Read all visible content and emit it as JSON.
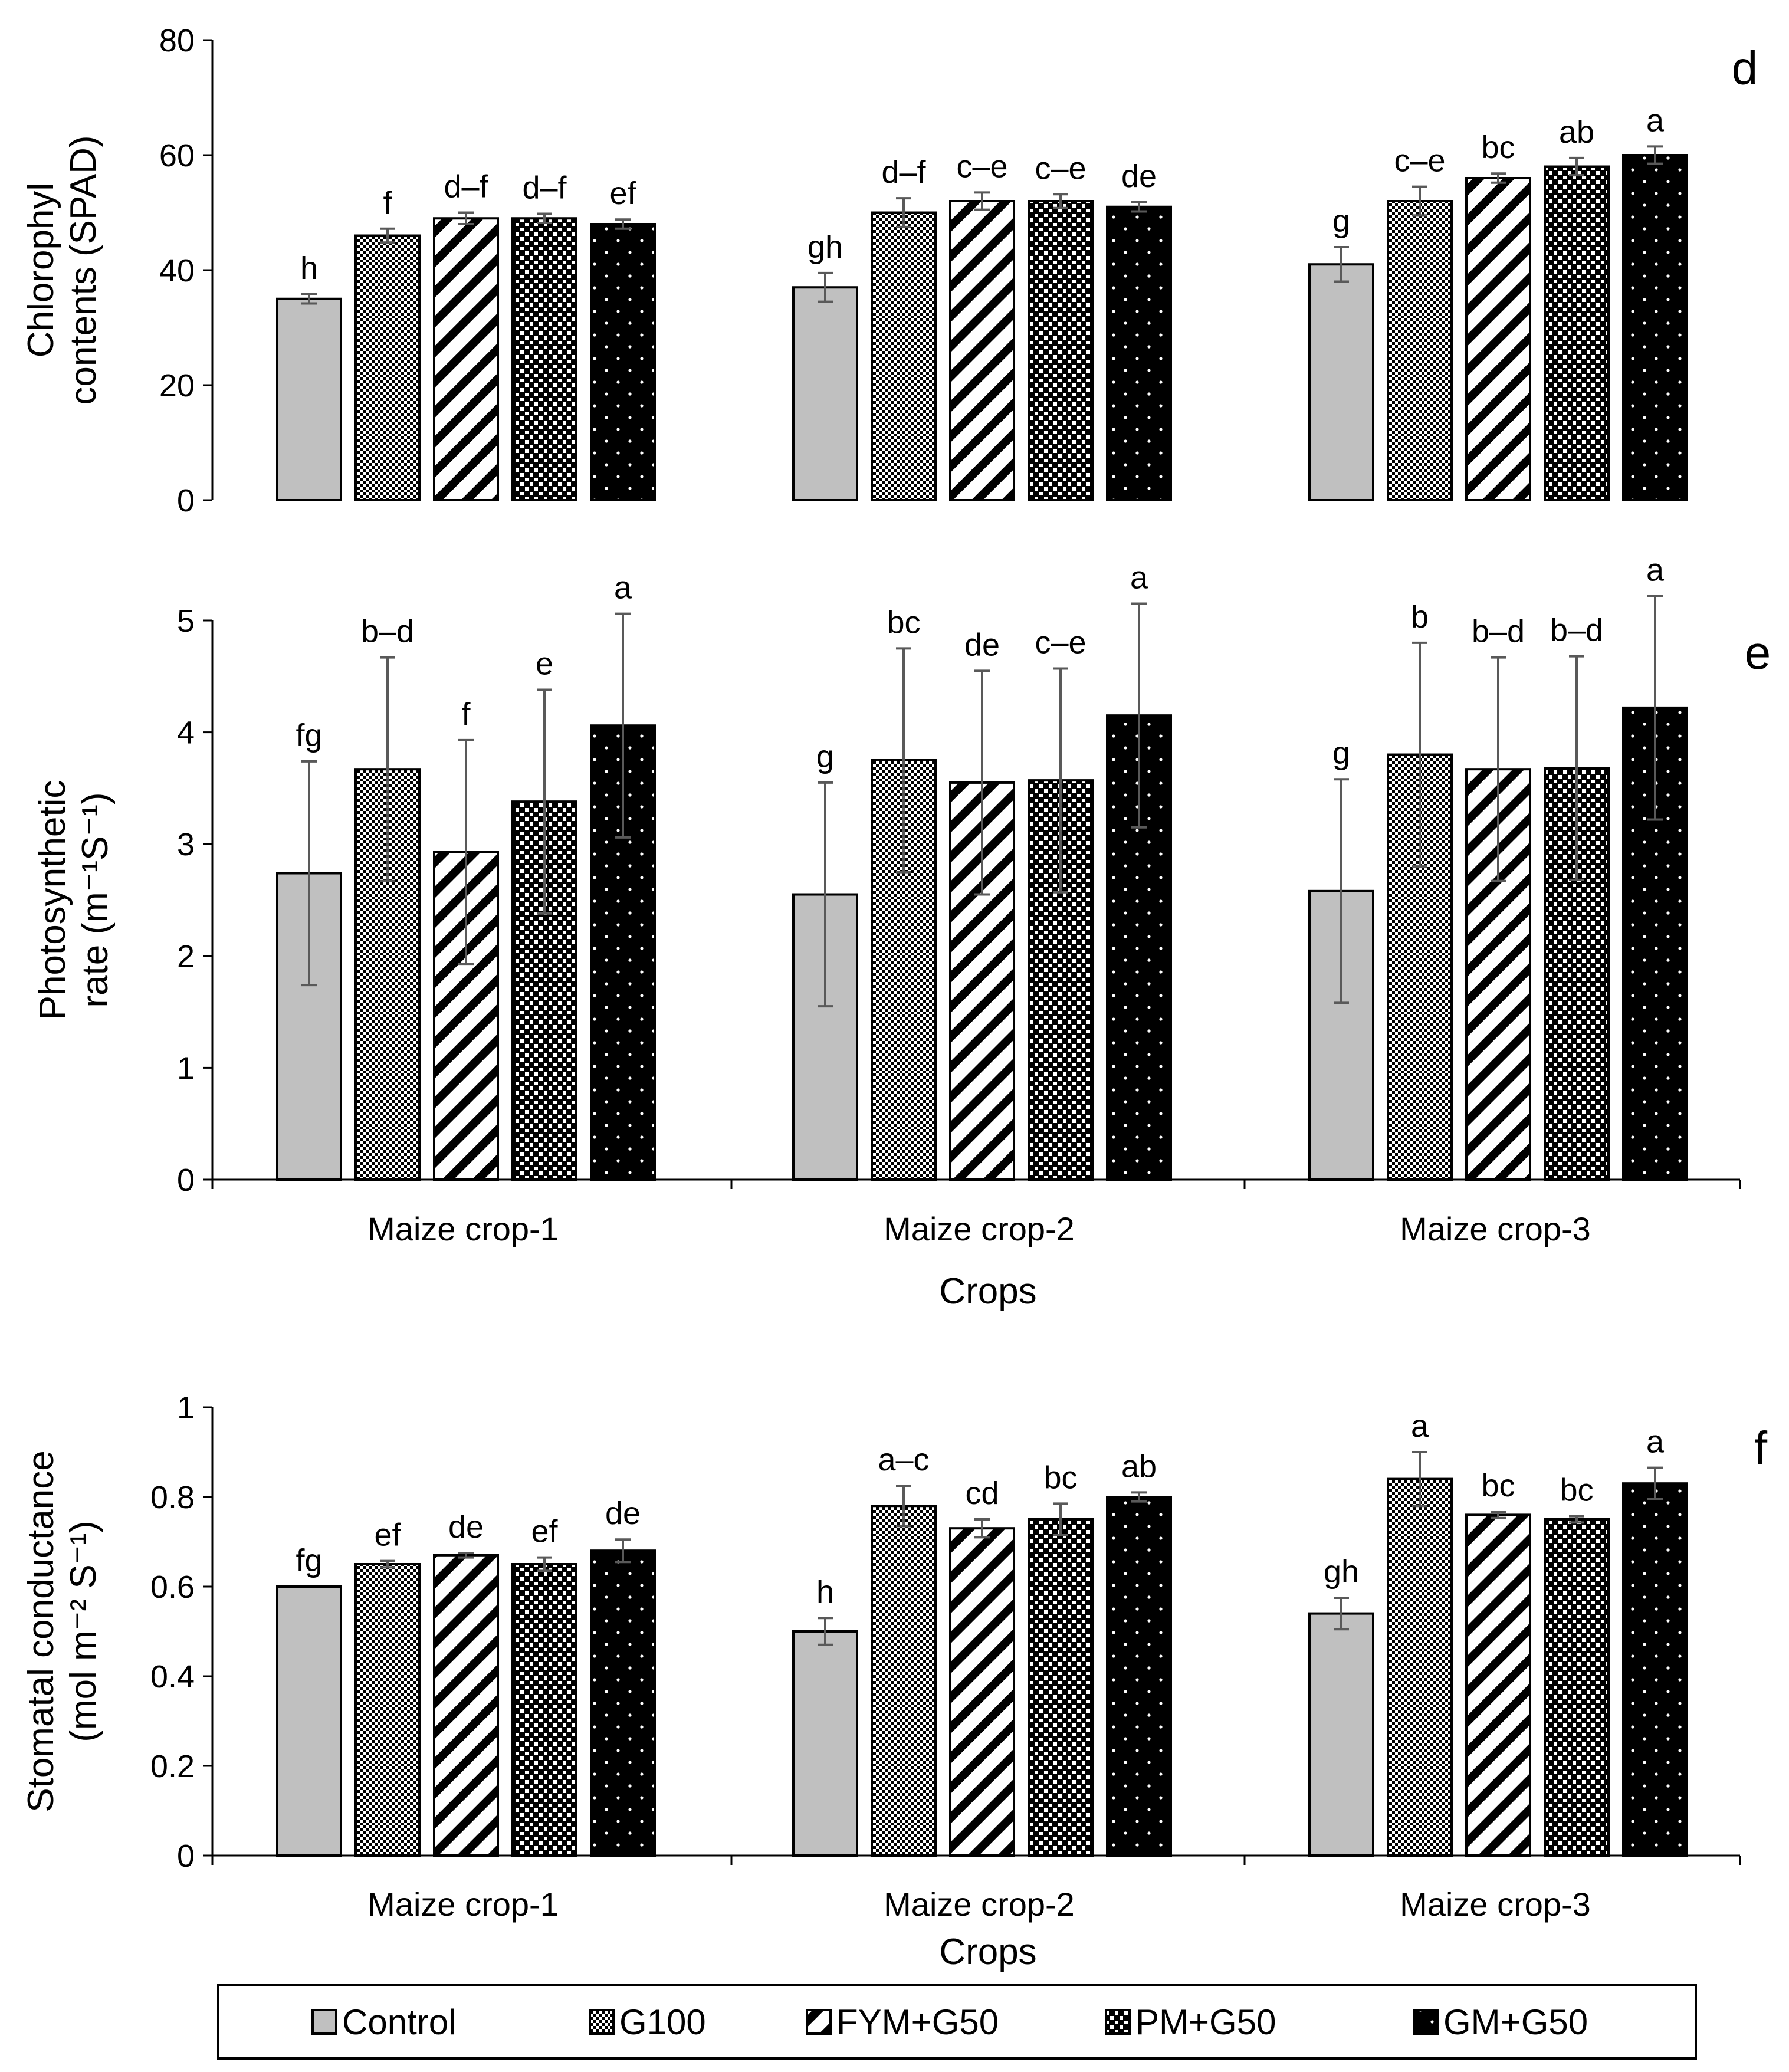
{
  "chart_data": [
    {
      "type": "bar",
      "panel_label": "d",
      "ylabel_lines": [
        "Chlorophyl",
        "contents (SPAD)"
      ],
      "xlabel": "",
      "ylim": [
        0,
        80
      ],
      "yticks": [
        "0",
        "20",
        "40",
        "60",
        "80"
      ],
      "categories": [
        "",
        "",
        ""
      ],
      "series": [
        {
          "name": "Control",
          "values": [
            35,
            37,
            41
          ],
          "errors": [
            0.8,
            2.5,
            3.0
          ],
          "letters": [
            "h",
            "gh",
            "g"
          ]
        },
        {
          "name": "G100",
          "values": [
            46,
            50,
            52
          ],
          "errors": [
            1.2,
            2.5,
            2.5
          ],
          "letters": [
            "f",
            "d–f",
            "c–e"
          ]
        },
        {
          "name": "FYM+G50",
          "values": [
            49,
            52,
            56
          ],
          "errors": [
            1.0,
            1.5,
            0.8
          ],
          "letters": [
            "d–f",
            "c–e",
            "bc"
          ]
        },
        {
          "name": "PM+G50",
          "values": [
            49,
            52,
            58
          ],
          "errors": [
            0.8,
            1.2,
            1.5
          ],
          "letters": [
            "d–f",
            "c–e",
            "ab"
          ]
        },
        {
          "name": "GM+G50",
          "values": [
            48,
            51,
            60
          ],
          "errors": [
            0.8,
            0.8,
            1.5
          ],
          "letters": [
            "ef",
            "de",
            "a"
          ]
        }
      ]
    },
    {
      "type": "bar",
      "panel_label": "e",
      "ylabel_lines": [
        "Photosynthetic",
        "rate (m⁻¹S⁻¹)"
      ],
      "xlabel": "Crops",
      "ylim": [
        0,
        5
      ],
      "yticks": [
        "0",
        "1",
        "2",
        "3",
        "4",
        "5"
      ],
      "categories": [
        "Maize crop-1",
        "Maize crop-2",
        "Maize crop-3"
      ],
      "series": [
        {
          "name": "Control",
          "values": [
            2.74,
            2.55,
            2.58
          ],
          "errors": [
            1.0,
            1.0,
            1.0
          ],
          "letters": [
            "fg",
            "g",
            "g"
          ]
        },
        {
          "name": "G100",
          "values": [
            3.67,
            3.75,
            3.8
          ],
          "errors": [
            1.0,
            1.0,
            1.0
          ],
          "letters": [
            "b–d",
            "bc",
            "b"
          ]
        },
        {
          "name": "FYM+G50",
          "values": [
            2.93,
            3.55,
            3.67
          ],
          "errors": [
            1.0,
            1.0,
            1.0
          ],
          "letters": [
            "f",
            "de",
            "b–d"
          ]
        },
        {
          "name": "PM+G50",
          "values": [
            3.38,
            3.57,
            3.68
          ],
          "errors": [
            1.0,
            1.0,
            1.0
          ],
          "letters": [
            "e",
            "c–e",
            "b–d"
          ]
        },
        {
          "name": "GM+G50",
          "values": [
            4.06,
            4.15,
            4.22
          ],
          "errors": [
            1.0,
            1.0,
            1.0
          ],
          "letters": [
            "a",
            "a",
            "a"
          ]
        }
      ]
    },
    {
      "type": "bar",
      "panel_label": "f",
      "ylabel_lines": [
        "Stomatal conductance",
        "(mol m⁻² S⁻¹)"
      ],
      "xlabel": "Crops",
      "ylim": [
        0,
        1
      ],
      "yticks": [
        "0",
        "0.2",
        "0.4",
        "0.6",
        "0.8",
        "1"
      ],
      "categories": [
        "Maize crop-1",
        "Maize crop-2",
        "Maize crop-3"
      ],
      "series": [
        {
          "name": "Control",
          "values": [
            0.6,
            0.5,
            0.54
          ],
          "errors": [
            0.0,
            0.03,
            0.035
          ],
          "letters": [
            "fg",
            "h",
            "gh"
          ]
        },
        {
          "name": "G100",
          "values": [
            0.65,
            0.78,
            0.84
          ],
          "errors": [
            0.007,
            0.045,
            0.06
          ],
          "letters": [
            "ef",
            "a–c",
            "a"
          ]
        },
        {
          "name": "FYM+G50",
          "values": [
            0.67,
            0.73,
            0.76
          ],
          "errors": [
            0.005,
            0.02,
            0.007
          ],
          "letters": [
            "de",
            "cd",
            "bc"
          ]
        },
        {
          "name": "PM+G50",
          "values": [
            0.65,
            0.75,
            0.75
          ],
          "errors": [
            0.015,
            0.035,
            0.007
          ],
          "letters": [
            "ef",
            "bc",
            "bc"
          ]
        },
        {
          "name": "GM+G50",
          "values": [
            0.68,
            0.8,
            0.83
          ],
          "errors": [
            0.025,
            0.01,
            0.035
          ],
          "letters": [
            "de",
            "ab",
            "a"
          ]
        }
      ]
    }
  ],
  "legend": {
    "items": [
      {
        "label": "Control",
        "pattern": "solid-gray"
      },
      {
        "label": "G100",
        "pattern": "checker"
      },
      {
        "label": "FYM+G50",
        "pattern": "diagonal-stripes"
      },
      {
        "label": "PM+G50",
        "pattern": "white-dots-on-black"
      },
      {
        "label": "GM+G50",
        "pattern": "sparse-dots-on-black"
      }
    ]
  },
  "colors": {
    "control_fill": "#c0c0c0",
    "ink": "#000000",
    "errorbar": "#595959"
  }
}
